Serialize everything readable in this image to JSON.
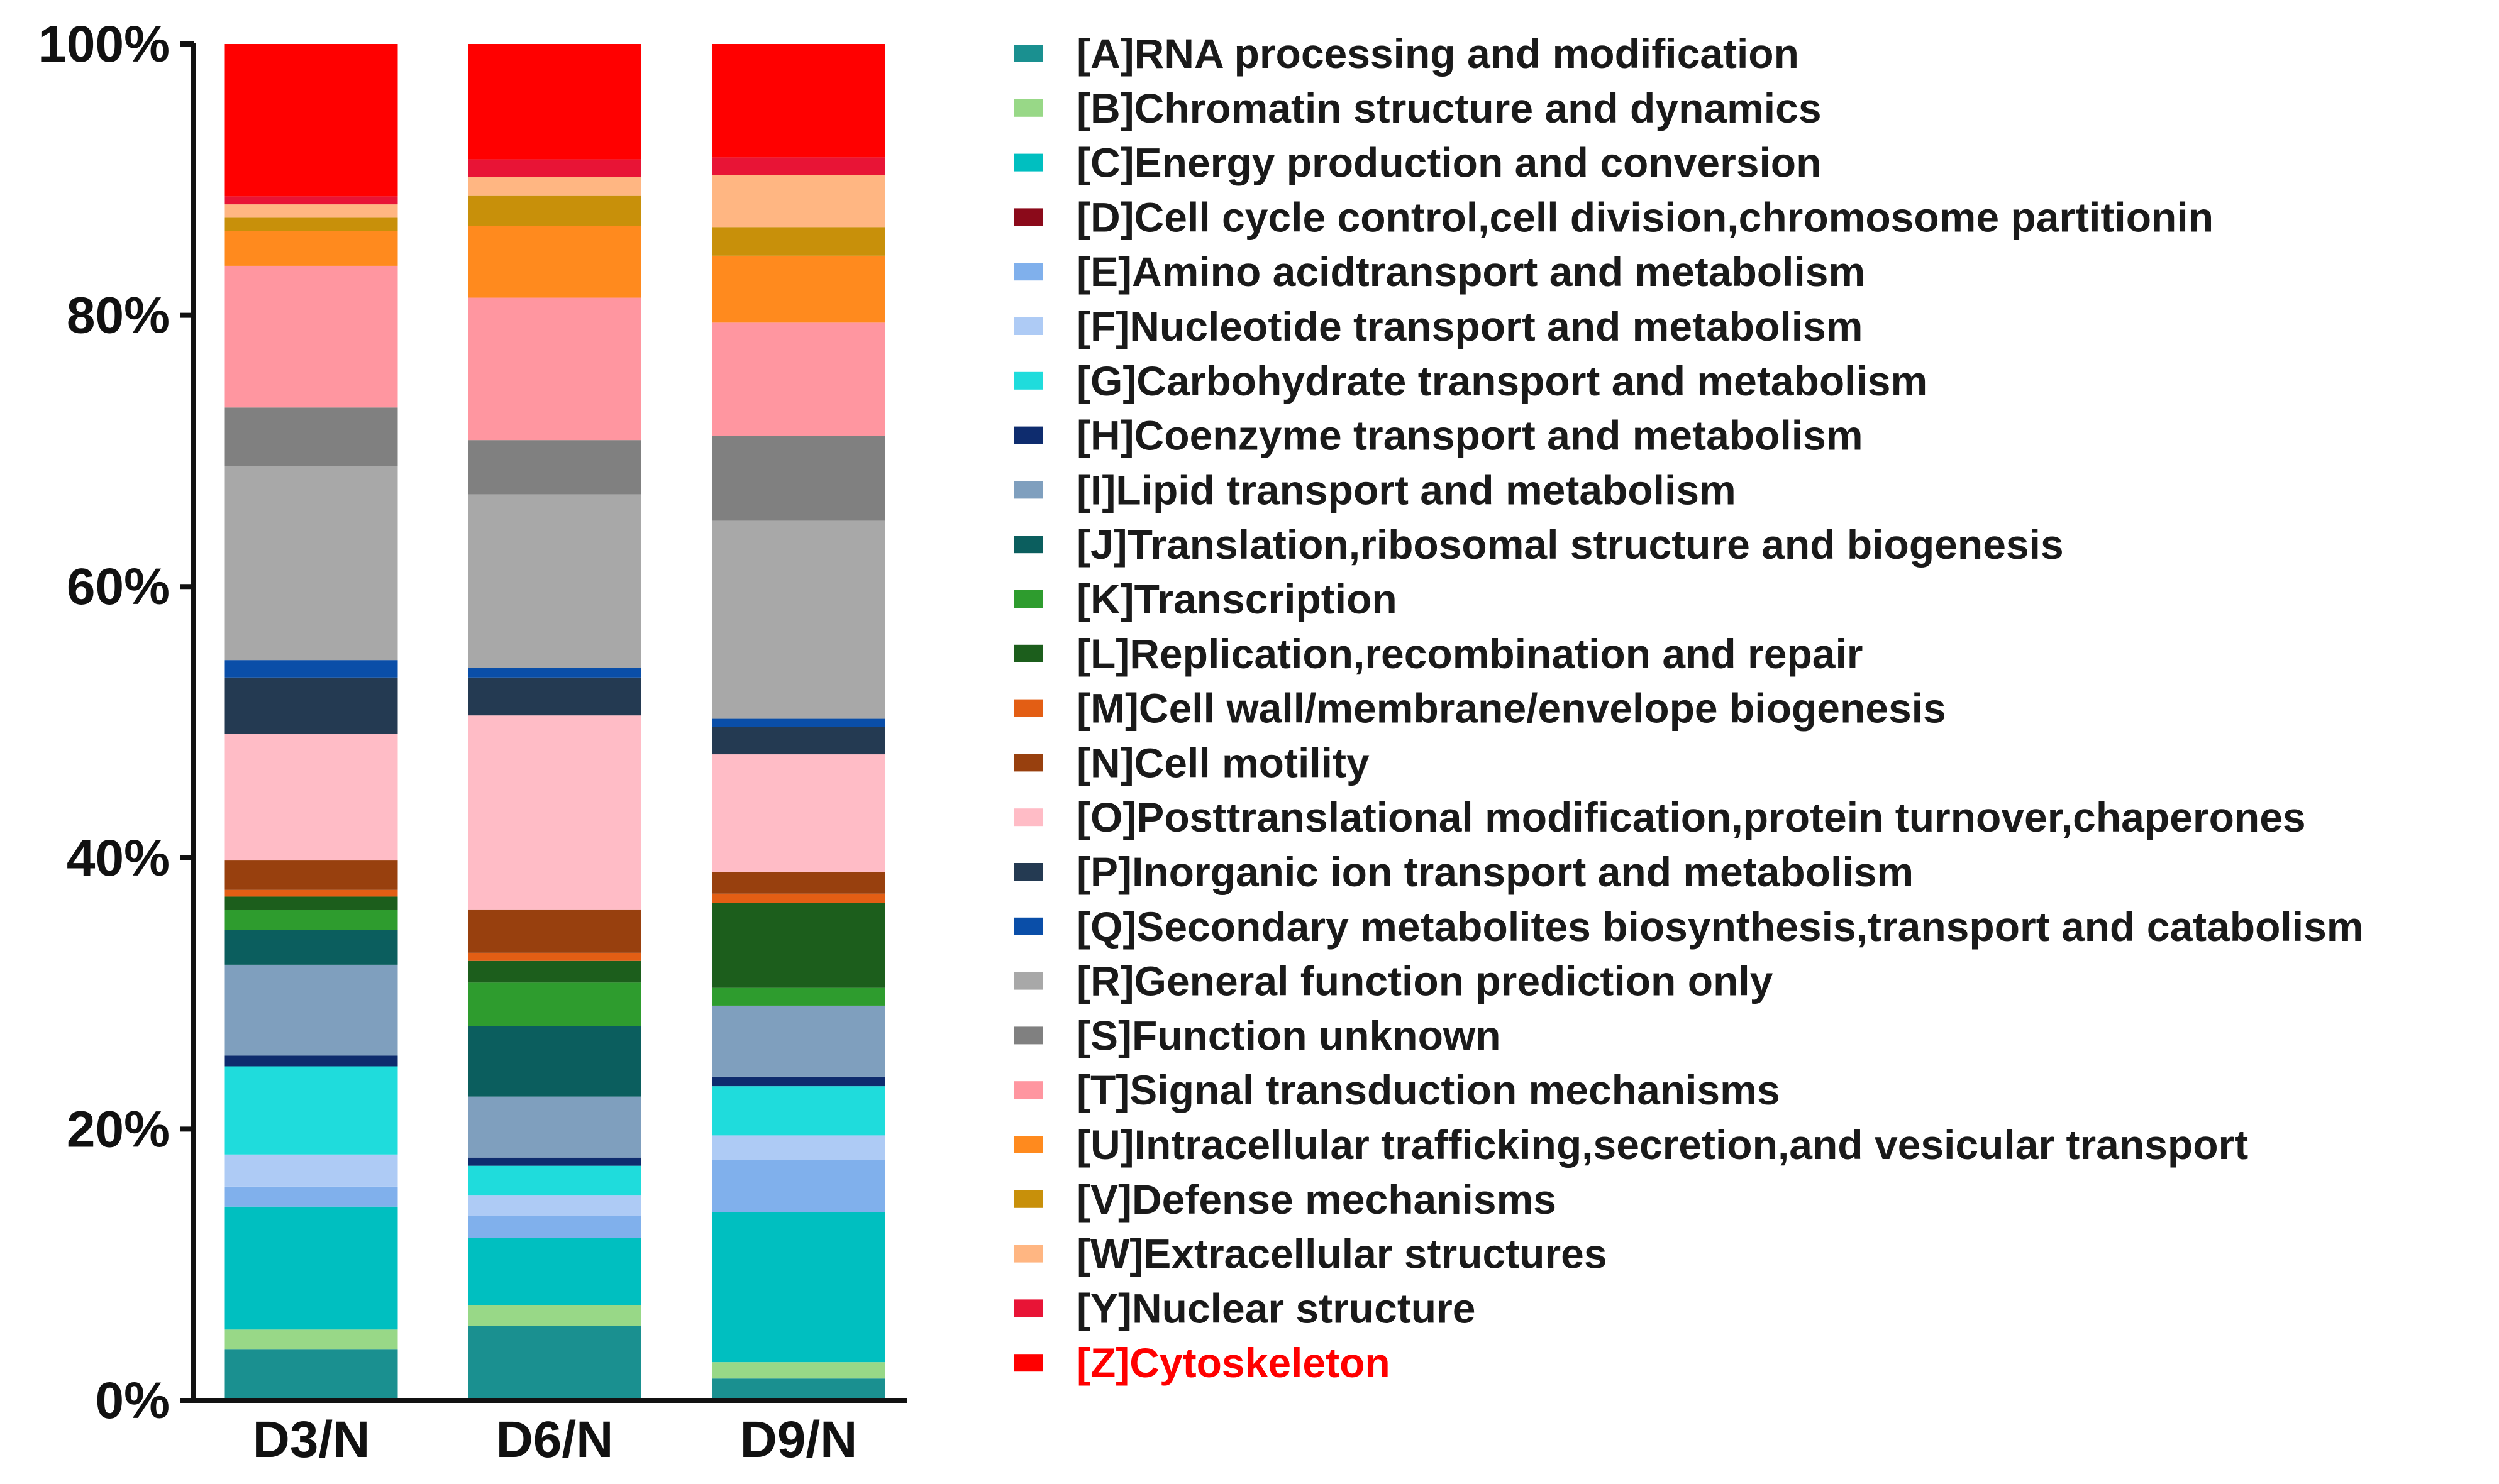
{
  "chart_data": {
    "type": "bar",
    "stacked": true,
    "percent": true,
    "categories": [
      "D3/N",
      "D6/N",
      "D9/N"
    ],
    "ylim": [
      0,
      100
    ],
    "yticks": [
      0,
      20,
      40,
      60,
      80,
      100
    ],
    "ytick_labels": [
      "0%",
      "20%",
      "40%",
      "60%",
      "80%",
      "100%"
    ],
    "grid": false,
    "legend_position": "right",
    "series": [
      {
        "code": "A",
        "name": "[A]RNA processing and modification",
        "color": "#1a9090",
        "values": [
          3.8,
          5.5,
          1.6
        ]
      },
      {
        "code": "B",
        "name": "[B]Chromatin structure and dynamics",
        "color": "#98d887",
        "values": [
          1.5,
          1.5,
          1.2
        ]
      },
      {
        "code": "C",
        "name": "[C]Energy production and conversion",
        "color": "#00bfc0",
        "values": [
          9.2,
          5.0,
          11.0
        ]
      },
      {
        "code": "D",
        "name": "[D]Cell cycle control,cell division,chromosome partitionin",
        "color": "#8b0a1a",
        "values": [
          0,
          0,
          0
        ]
      },
      {
        "code": "E",
        "name": "[E]Amino acidtransport and metabolism",
        "color": "#80b0ec",
        "values": [
          1.5,
          1.6,
          3.8
        ]
      },
      {
        "code": "F",
        "name": "[F]Nucleotide transport and metabolism",
        "color": "#aecbf5",
        "values": [
          2.4,
          1.5,
          1.8
        ]
      },
      {
        "code": "G",
        "name": "[G]Carbohydrate transport and metabolism",
        "color": "#1fdcdc",
        "values": [
          6.6,
          2.2,
          3.6
        ]
      },
      {
        "code": "H",
        "name": "[H]Coenzyme transport and metabolism",
        "color": "#0e2c6e",
        "values": [
          0.8,
          0.6,
          0.7
        ]
      },
      {
        "code": "I",
        "name": "[I]Lipid transport and metabolism",
        "color": "#7f9fbe",
        "values": [
          6.8,
          4.5,
          5.2
        ]
      },
      {
        "code": "J",
        "name": "[J]Translation,ribosomal structure and biogenesis",
        "color": "#0b5e5e",
        "values": [
          2.6,
          5.2,
          0
        ]
      },
      {
        "code": "K",
        "name": "[K]Transcription",
        "color": "#2e9c2e",
        "values": [
          1.5,
          3.2,
          1.3
        ]
      },
      {
        "code": "L",
        "name": "[L]Replication,recombination and repair",
        "color": "#1c5e1c",
        "values": [
          1.0,
          1.6,
          6.2
        ]
      },
      {
        "code": "M",
        "name": "[M]Cell wall/membrane/envelope biogenesis",
        "color": "#e35e14",
        "values": [
          0.5,
          0.6,
          0.7
        ]
      },
      {
        "code": "N",
        "name": "[N]Cell motility",
        "color": "#98400e",
        "values": [
          2.2,
          3.2,
          1.6
        ]
      },
      {
        "code": "O",
        "name": "[O]Posttranslational modification,protein turnover,chaperones",
        "color": "#ffbcc6",
        "values": [
          9.5,
          14.3,
          8.6
        ]
      },
      {
        "code": "P",
        "name": "[P]Inorganic ion transport and metabolism",
        "color": "#243a52",
        "values": [
          4.2,
          2.8,
          2.0
        ]
      },
      {
        "code": "Q",
        "name": "[Q]Secondary metabolites biosynthesis,transport and catabolism",
        "color": "#0a4ea8",
        "values": [
          1.3,
          0.7,
          0.6
        ]
      },
      {
        "code": "R",
        "name": "[R]General function prediction only",
        "color": "#a8a8a8",
        "values": [
          14.5,
          12.8,
          14.5
        ]
      },
      {
        "code": "S",
        "name": "[S]Function unknown",
        "color": "#808080",
        "values": [
          4.4,
          4.0,
          6.2
        ]
      },
      {
        "code": "T",
        "name": "[T]Signal transduction mechanisms",
        "color": "#ff96a0",
        "values": [
          10.6,
          10.5,
          8.3
        ]
      },
      {
        "code": "U",
        "name": "[U]Intracellular trafficking,secretion,and vesicular transport",
        "color": "#ff8a1e",
        "values": [
          2.6,
          5.3,
          4.9
        ]
      },
      {
        "code": "V",
        "name": "[V]Defense mechanisms",
        "color": "#c8900a",
        "values": [
          1.0,
          2.2,
          2.1
        ]
      },
      {
        "code": "W",
        "name": "[W]Extracellular structures",
        "color": "#ffb682",
        "values": [
          1.0,
          1.4,
          3.8
        ]
      },
      {
        "code": "Y",
        "name": "[Y]Nuclear structure",
        "color": "#e81436",
        "values": [
          0.6,
          1.3,
          1.3
        ]
      },
      {
        "code": "Z",
        "name": "[Z]Cytoskeleton",
        "color": "#ff0000",
        "values": [
          11.4,
          8.5,
          8.3
        ],
        "highlight": true
      }
    ]
  }
}
